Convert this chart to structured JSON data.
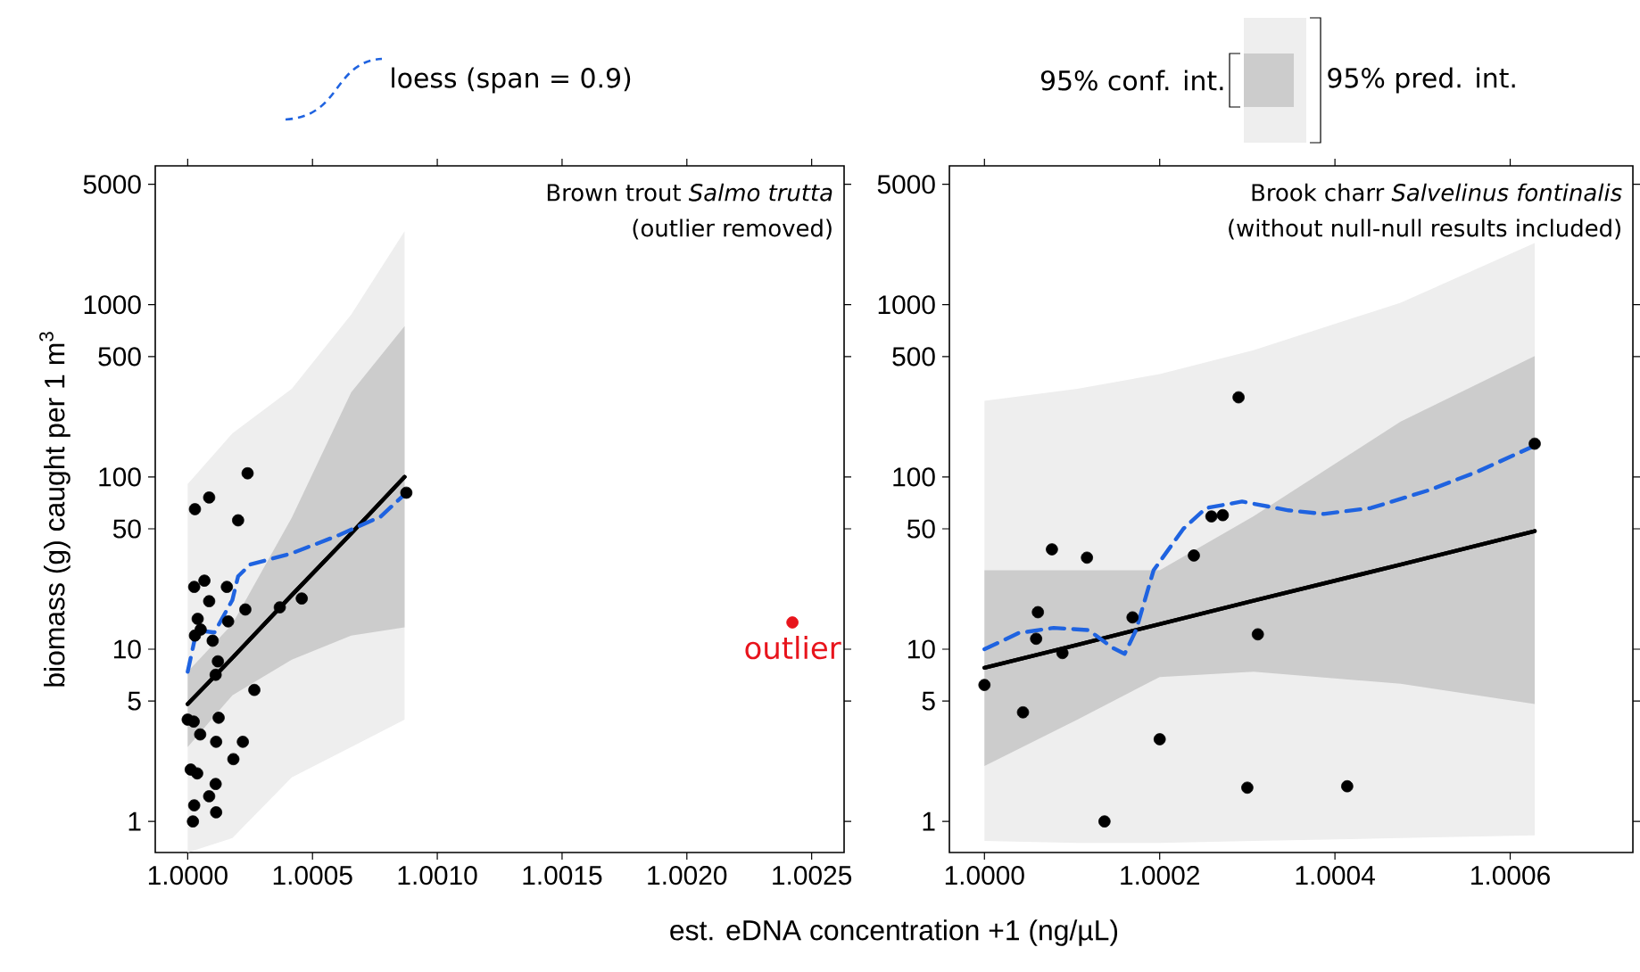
{
  "chart_data": [
    {
      "type": "scatter",
      "title": "Brown trout *Salmo trutta*",
      "subtitle": "(outlier removed)",
      "xlabel": "est. eDNA concentration +1 (ng/µL)",
      "ylabel": "biomass (g) caught per 1 m$^{3}$",
      "log": "y",
      "legend": "top",
      "xlim": [
        0.99987,
        1.00263
      ],
      "ylim": [
        0.66,
        6400
      ],
      "xticks": [
        {
          "value": 1.0,
          "label": "1.0000"
        },
        {
          "value": 1.0005,
          "label": "1.0005"
        },
        {
          "value": 1.001,
          "label": "1.0010"
        },
        {
          "value": 1.0015,
          "label": "1.0015"
        },
        {
          "value": 1.002,
          "label": "1.0020"
        },
        {
          "value": 1.0025,
          "label": "1.0025"
        }
      ],
      "yticks": [
        1,
        5,
        10,
        50,
        100,
        500,
        1000,
        5000
      ],
      "annotations": [
        "95% conf. int.",
        "95% pred. int.",
        {
          "text": "outlier",
          "x": 1.002423,
          "y": 14.3
        }
      ],
      "series": [
        {
          "type": "line",
          "color": "#000000",
          "x": [
            1.0,
            1.000179,
            1.000417,
            1.000655,
            1.000869
          ],
          "values": [
            4.8,
            8.9,
            20.6,
            47,
            100
          ],
          "lower": [
            0.66,
            0.8,
            1.8,
            2.7,
            3.9
          ],
          "upper": [
            91,
            179,
            325,
            877,
            2670
          ]
        },
        {
          "type": "line",
          "color": "#000000",
          "x": [
            1.0,
            1.000179,
            1.000417,
            1.000655,
            1.000869
          ],
          "values": [
            4.8,
            8.9,
            20.6,
            47,
            100
          ],
          "lower": [
            2.7,
            5.4,
            8.7,
            12,
            13.4
          ],
          "upper": [
            7.4,
            14,
            58,
            310,
            750
          ]
        },
        {
          "type": "line",
          "name": "loess (span = 0.9)",
          "color": "#1f63e0",
          "line_style": "dashed",
          "x": [
            1.0,
            1.000036,
            1.000107,
            1.000179,
            1.000202,
            1.00025,
            1.000417,
            1.000607,
            1.000774,
            1.000876
          ],
          "values": [
            7.4,
            12.9,
            12.5,
            19.3,
            26.5,
            31,
            36,
            46,
            59,
            81
          ]
        },
        {
          "type": "scatter",
          "marker": "circle",
          "color": "#000000",
          "x": [
            1.000029,
            1.000086,
            1.00024,
            1.000202,
            1.000026,
            1.000067,
            1.000086,
            1.000157,
            1.00004,
            1.000029,
            1.000052,
            1.0001,
            1.000162,
            1.000231,
            1.000369,
            1.000457,
            1.000121,
            1.000112,
            1.000267,
            1.0,
            1.000024,
            1.000124,
            1.00005,
            1.000114,
            1.000221,
            1.000183,
            1.000012,
            1.000038,
            1.000112,
            1.000086,
            1.000026,
            1.000114,
            1.000021,
            1.000876
          ],
          "values": [
            65,
            76,
            105,
            56,
            23,
            25,
            19,
            23,
            15,
            12,
            13,
            11.2,
            14.5,
            17,
            17.5,
            19.7,
            8.5,
            7.1,
            5.8,
            3.9,
            3.8,
            4.0,
            3.2,
            2.9,
            2.9,
            2.3,
            2.0,
            1.9,
            1.65,
            1.4,
            1.24,
            1.13,
            1.0,
            81
          ]
        },
        {
          "type": "scatter",
          "marker": "circle",
          "color": "#e8141c",
          "x": [
            1.002423
          ],
          "values": [
            14.3
          ]
        }
      ]
    },
    {
      "type": "scatter",
      "title": "Brook charr *Salvelinus fontinalis*",
      "subtitle": "(without null-null results included)",
      "log": "y",
      "xlim": [
        0.99996,
        1.00074
      ],
      "ylim": [
        0.66,
        6400
      ],
      "xticks": [
        {
          "value": 1.0,
          "label": "1.0000"
        },
        {
          "value": 1.0002,
          "label": "1.0002"
        },
        {
          "value": 1.0004,
          "label": "1.0004"
        },
        {
          "value": 1.0006,
          "label": "1.0006"
        }
      ],
      "yticks": [
        1,
        5,
        10,
        50,
        100,
        500,
        1000,
        5000
      ],
      "series": [
        {
          "type": "line",
          "color": "#000000",
          "x": [
            1.0,
            1.000106,
            1.0002,
            1.000307,
            1.000475,
            1.000628
          ],
          "values": [
            7.8,
            10.6,
            14.0,
            19.1,
            31,
            48.5
          ],
          "lower": [
            0.77,
            0.75,
            0.75,
            0.77,
            0.8,
            0.83
          ],
          "upper": [
            277,
            325,
            396,
            544,
            1028,
            2280
          ]
        },
        {
          "type": "line",
          "color": "#000000",
          "x": [
            1.0,
            1.000106,
            1.0002,
            1.000307,
            1.000475,
            1.000628
          ],
          "values": [
            7.8,
            10.6,
            14.0,
            19.1,
            31,
            48.5
          ],
          "lower": [
            2.1,
            3.9,
            6.9,
            7.4,
            6.3,
            4.8
          ],
          "upper": [
            28.7,
            28.7,
            28.7,
            59,
            210,
            503
          ]
        },
        {
          "type": "line",
          "color": "#1f63e0",
          "line_style": "dashed",
          "x": [
            1.0,
            1.000039,
            1.000079,
            1.000119,
            1.000146,
            1.00016,
            1.000173,
            1.000193,
            1.000227,
            1.000253,
            1.000294,
            1.000347,
            1.000387,
            1.000441,
            1.000508,
            1.000562,
            1.000628
          ],
          "values": [
            10.0,
            12.4,
            13.3,
            12.9,
            10.2,
            9.4,
            12.9,
            28.7,
            50,
            66,
            72,
            64,
            61,
            66,
            84,
            107,
            152
          ]
        },
        {
          "type": "scatter",
          "marker": "circle",
          "color": "#000000",
          "x": [
            1.0,
            1.000044,
            1.000061,
            1.000059,
            1.000077,
            1.000089,
            1.000117,
            1.000137,
            1.000169,
            1.0002,
            1.000239,
            1.000259,
            1.000272,
            1.00029,
            1.0003,
            1.000312,
            1.000414,
            1.000628
          ],
          "values": [
            6.2,
            4.3,
            16.4,
            11.5,
            38,
            9.5,
            34,
            1.0,
            15.3,
            3.0,
            35,
            59,
            60,
            290,
            1.57,
            12.2,
            1.6,
            156
          ]
        }
      ]
    }
  ]
}
